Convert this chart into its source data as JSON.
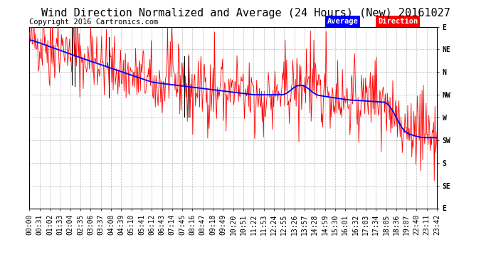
{
  "title": "Wind Direction Normalized and Average (24 Hours) (New) 20161027",
  "copyright": "Copyright 2016 Cartronics.com",
  "background_color": "#ffffff",
  "plot_bg_color": "#ffffff",
  "grid_color": "#aaaaaa",
  "y_labels": [
    "E",
    "NE",
    "N",
    "NW",
    "W",
    "SW",
    "S",
    "SE",
    "E"
  ],
  "y_ticks": [
    360,
    315,
    270,
    225,
    180,
    135,
    90,
    45,
    0
  ],
  "x_tick_labels": [
    "00:00",
    "00:31",
    "01:02",
    "01:33",
    "02:04",
    "02:35",
    "03:06",
    "03:37",
    "04:08",
    "04:39",
    "05:10",
    "05:41",
    "06:12",
    "06:43",
    "07:14",
    "07:45",
    "08:16",
    "08:47",
    "09:18",
    "09:49",
    "10:20",
    "10:51",
    "11:22",
    "11:53",
    "12:24",
    "12:55",
    "13:26",
    "13:57",
    "14:28",
    "14:59",
    "15:30",
    "16:01",
    "16:32",
    "17:03",
    "17:34",
    "18:05",
    "18:36",
    "19:07",
    "22:40",
    "23:11",
    "23:42"
  ],
  "red_line_color": "#ff0000",
  "blue_line_color": "#0000ff",
  "black_line_color": "#000000",
  "legend_average_bg": "#0000ff",
  "legend_direction_bg": "#ff0000",
  "legend_text_color": "#ffffff",
  "ylim_min": 0,
  "ylim_max": 360,
  "title_fontsize": 11,
  "tick_fontsize": 7,
  "copyright_fontsize": 7.5
}
